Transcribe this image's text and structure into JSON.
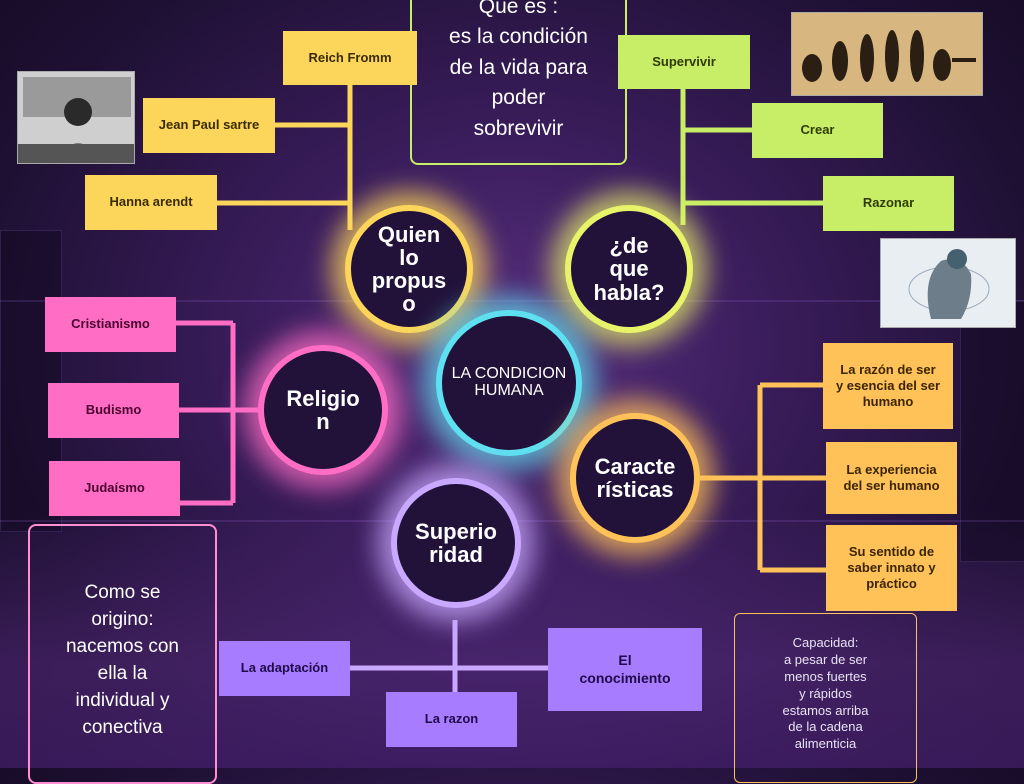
{
  "center": {
    "label_line1": "LA CONDICION",
    "label_line2": "HUMANA"
  },
  "top_note": {
    "text": "Que es :\nes la condición\nde la vida para\npoder\nsobrevivir"
  },
  "quien": {
    "label": "Quien\nlo\npropus\no",
    "items": [
      "Reich Fromm",
      "Jean Paul sartre",
      "Hanna arendt"
    ]
  },
  "habla": {
    "label": "¿de\nque\nhabla?",
    "items": [
      "Supervivir",
      "Crear",
      "Razonar"
    ]
  },
  "religion": {
    "label": "Religio\nn",
    "items": [
      "Cristianismo",
      "Budismo",
      "Judaísmo"
    ]
  },
  "caracteristicas": {
    "label": "Caracte\nrísticas",
    "items": [
      "La razón de ser\ny esencia del ser\nhumano",
      "La experiencia\ndel ser humano",
      "Su sentido de\nsaber innato y\npráctico"
    ]
  },
  "superioridad": {
    "label": "Superio\nridad",
    "items": [
      "La adaptación",
      "El\nconocimiento",
      "La razon"
    ]
  },
  "origen_note": {
    "text": "Como se\norigino:\nnacemos con\nella la\nindividual y\nconectiva"
  },
  "capacidad_note": {
    "text": "Capacidad:\na pesar de ser\nmenos fuertes\ny rápidos\nestamos arriba\nde la cadena\nalimenticia"
  },
  "colors": {
    "yellow": "#fcd65a",
    "green": "#c7ee66",
    "pink": "#ff6ec4",
    "orange": "#ffc259",
    "violet": "#a77cff",
    "cyan": "#5fe0f0"
  }
}
